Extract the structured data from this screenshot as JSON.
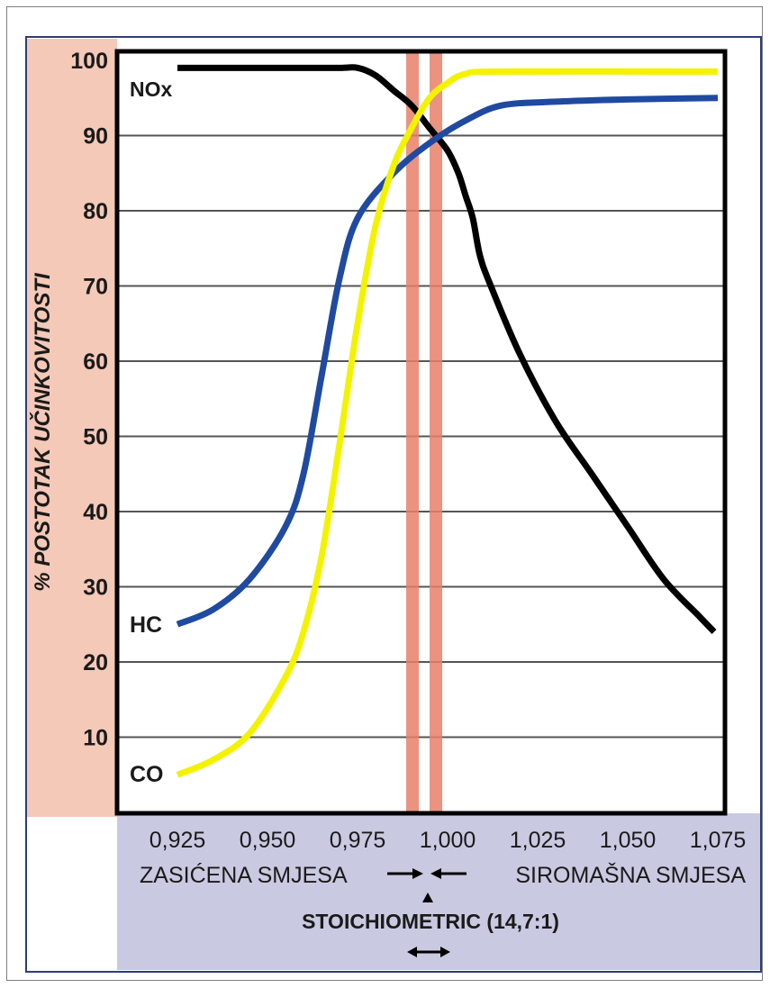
{
  "chart_data": {
    "type": "line",
    "ylabel": "% POSTOTAK UČINKOVITOSTI",
    "xlim": [
      0.925,
      1.075
    ],
    "ylim": [
      0,
      100
    ],
    "x_ticks": [
      "0,925",
      "0,950",
      "0,975",
      "1,000",
      "1,025",
      "1,050",
      "1,075"
    ],
    "x_tick_values": [
      0.925,
      0.95,
      0.975,
      1.0,
      1.025,
      1.05,
      1.075
    ],
    "y_ticks": [
      "10",
      "20",
      "30",
      "40",
      "50",
      "60",
      "70",
      "80",
      "90",
      "100"
    ],
    "y_tick_values": [
      10,
      20,
      30,
      40,
      50,
      60,
      70,
      80,
      90,
      100
    ],
    "grid": "horizontal",
    "series": [
      {
        "name": "NOx",
        "color": "#000000",
        "points": [
          [
            0.925,
            99
          ],
          [
            0.94,
            99
          ],
          [
            0.955,
            99
          ],
          [
            0.97,
            99
          ],
          [
            0.975,
            99
          ],
          [
            0.98,
            98
          ],
          [
            0.985,
            96
          ],
          [
            0.99,
            94
          ],
          [
            0.995,
            91
          ],
          [
            1.0,
            88
          ],
          [
            1.003,
            85
          ],
          [
            1.005,
            82
          ],
          [
            1.007,
            79
          ],
          [
            1.009,
            74
          ],
          [
            1.012,
            70
          ],
          [
            1.02,
            61
          ],
          [
            1.03,
            52
          ],
          [
            1.04,
            45
          ],
          [
            1.05,
            38
          ],
          [
            1.06,
            31
          ],
          [
            1.07,
            26
          ],
          [
            1.074,
            24
          ]
        ]
      },
      {
        "name": "HC",
        "color": "#1f4aa0",
        "points": [
          [
            0.925,
            25
          ],
          [
            0.935,
            27
          ],
          [
            0.945,
            31
          ],
          [
            0.955,
            38
          ],
          [
            0.96,
            45
          ],
          [
            0.965,
            58
          ],
          [
            0.97,
            71
          ],
          [
            0.975,
            79
          ],
          [
            0.985,
            85
          ],
          [
            0.995,
            89
          ],
          [
            1.005,
            92
          ],
          [
            1.015,
            94
          ],
          [
            1.03,
            94.5
          ],
          [
            1.05,
            94.8
          ],
          [
            1.075,
            95
          ]
        ]
      },
      {
        "name": "CO",
        "color": "#f3f300",
        "points": [
          [
            0.925,
            5
          ],
          [
            0.935,
            7
          ],
          [
            0.945,
            10.5
          ],
          [
            0.955,
            18
          ],
          [
            0.96,
            24
          ],
          [
            0.965,
            34
          ],
          [
            0.97,
            49
          ],
          [
            0.975,
            65
          ],
          [
            0.98,
            78
          ],
          [
            0.985,
            86
          ],
          [
            0.99,
            91
          ],
          [
            0.995,
            95
          ],
          [
            1.0,
            97
          ],
          [
            1.005,
            98.2
          ],
          [
            1.015,
            98.5
          ],
          [
            1.075,
            98.5
          ]
        ]
      }
    ],
    "stoich_bands_x": [
      [
        0.9885,
        0.992
      ],
      [
        0.995,
        0.9985
      ]
    ]
  },
  "labels": {
    "nox": "NOx",
    "hc": "HC",
    "co": "CO",
    "rich": "ZASIĆENA SMJESA",
    "lean": "SIROMAŠNA SMJESA",
    "stoich": "STOICHIOMETRIC (14,7:1)"
  },
  "colors": {
    "ylabel_panel": "#f4c9b8",
    "xlabel_panel": "#c9cae1",
    "band": "#e88068",
    "grid": "#555555",
    "text": "#1a1a1a"
  }
}
